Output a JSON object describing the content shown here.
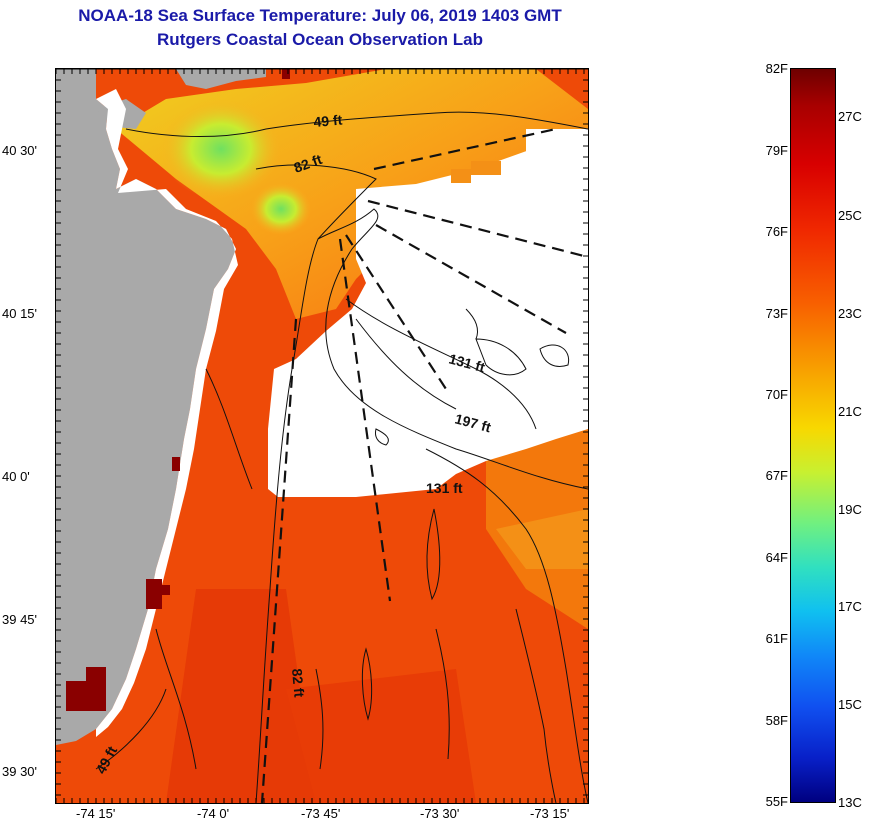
{
  "title": {
    "line1": "NOAA-18 Sea Surface Temperature:  July 06, 2019 1403 GMT",
    "line2": "Rutgers Coastal Ocean Observation Lab"
  },
  "axes": {
    "lat_labels": [
      "40 30'",
      "40 15'",
      "40 0'",
      "39 45'",
      "39 30'"
    ],
    "lon_labels": [
      "-74 15'",
      "-74 0'",
      "-73 45'",
      "-73 30'",
      "-73 15'"
    ]
  },
  "contour_labels": {
    "c49_north": "49 ft",
    "c82_north": "82 ft",
    "c131_east": "131 ft",
    "c197": "197 ft",
    "c131_south": "131 ft",
    "c82_south": "82 ft",
    "c49_south": "49 ft"
  },
  "colorbar": {
    "fahrenheit_labels": [
      "82F",
      "79F",
      "76F",
      "73F",
      "70F",
      "67F",
      "64F",
      "61F",
      "58F",
      "55F"
    ],
    "celsius_labels": [
      "27C",
      "25C",
      "23C",
      "21C",
      "19C",
      "17C",
      "15C",
      "13C"
    ]
  },
  "colors": {
    "land": "#a9a9a9",
    "cloud_mask": "#ffffff",
    "warm_sst": "#f04c00",
    "title": "#1a1aa8"
  }
}
